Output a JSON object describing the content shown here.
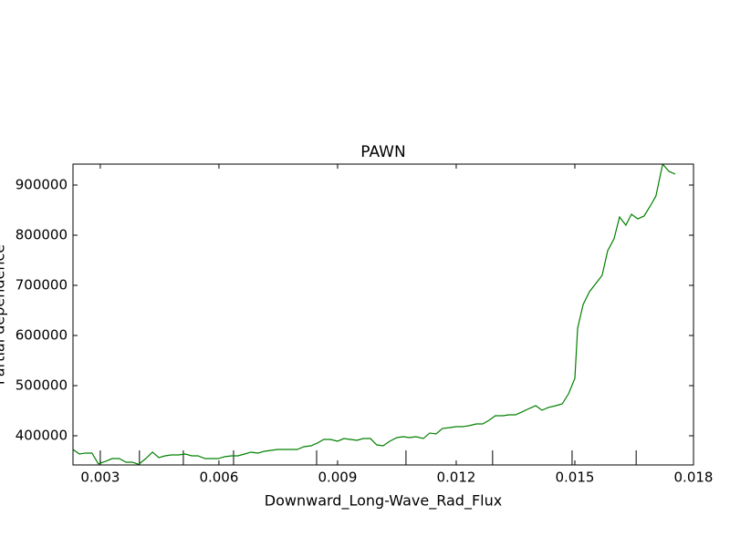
{
  "chart_data": {
    "type": "line",
    "title": "PAWN",
    "x_label": "Downward_Long-Wave_Rad_Flux",
    "y_label": "Partial dependence",
    "xlim": [
      0.00231,
      0.018
    ],
    "ylim": [
      341800,
      941800
    ],
    "xticks": [
      0.003,
      0.006,
      0.009,
      0.012,
      0.015,
      0.018
    ],
    "yticks": [
      400000,
      500000,
      600000,
      700000,
      800000,
      900000
    ],
    "deciles": [
      0.003,
      0.00399,
      0.0051,
      0.00637,
      0.00847,
      0.01073,
      0.01292,
      0.01493,
      0.01655
    ],
    "series": [
      {
        "color": "#008000",
        "x": [
          0.00231,
          0.00247,
          0.00263,
          0.00279,
          0.00295,
          0.00314,
          0.0033,
          0.00348,
          0.00365,
          0.00381,
          0.00397,
          0.00415,
          0.00432,
          0.00448,
          0.00464,
          0.0048,
          0.00498,
          0.00515,
          0.00531,
          0.00547,
          0.00565,
          0.00582,
          0.00598,
          0.00614,
          0.00632,
          0.00648,
          0.00665,
          0.00681,
          0.00699,
          0.00715,
          0.00732,
          0.00748,
          0.00766,
          0.00782,
          0.00798,
          0.00815,
          0.00833,
          0.00849,
          0.00865,
          0.00882,
          0.009,
          0.00916,
          0.00932,
          0.00949,
          0.00965,
          0.00983,
          0.00999,
          0.01015,
          0.01032,
          0.0105,
          0.01066,
          0.01082,
          0.01098,
          0.01117,
          0.01133,
          0.01149,
          0.01165,
          0.01184,
          0.012,
          0.01216,
          0.01232,
          0.01251,
          0.01267,
          0.01283,
          0.01299,
          0.01318,
          0.01334,
          0.0135,
          0.01366,
          0.01385,
          0.01401,
          0.01417,
          0.01433,
          0.01452,
          0.01468,
          0.01484,
          0.015,
          0.01507,
          0.01521,
          0.01537,
          0.01553,
          0.01569,
          0.01583,
          0.01599,
          0.01613,
          0.01629,
          0.01643,
          0.01659,
          0.01675,
          0.01692,
          0.01705,
          0.01722,
          0.01738,
          0.01754
        ],
        "values": [
          372700,
          363600,
          365500,
          365500,
          344000,
          349100,
          354500,
          354500,
          347300,
          347300,
          343000,
          354500,
          367300,
          356400,
          360000,
          361800,
          361800,
          363600,
          360000,
          360000,
          354500,
          354500,
          354500,
          358200,
          360000,
          360000,
          363600,
          367300,
          365500,
          369100,
          370900,
          372700,
          372700,
          372700,
          372700,
          378200,
          380000,
          385500,
          392700,
          392700,
          389100,
          394500,
          392700,
          390900,
          394500,
          394500,
          381800,
          380000,
          389100,
          396400,
          398200,
          396400,
          398200,
          394500,
          405500,
          403600,
          414500,
          416400,
          418200,
          418200,
          420000,
          423600,
          423600,
          430900,
          440000,
          440000,
          441800,
          441800,
          447300,
          454500,
          460000,
          450900,
          456400,
          460000,
          463600,
          483600,
          514500,
          614500,
          661800,
          687300,
          703600,
          720000,
          769100,
          792700,
          836400,
          820000,
          841800,
          832700,
          838200,
          860000,
          878200,
          941800,
          927300,
          921800
        ]
      }
    ]
  }
}
